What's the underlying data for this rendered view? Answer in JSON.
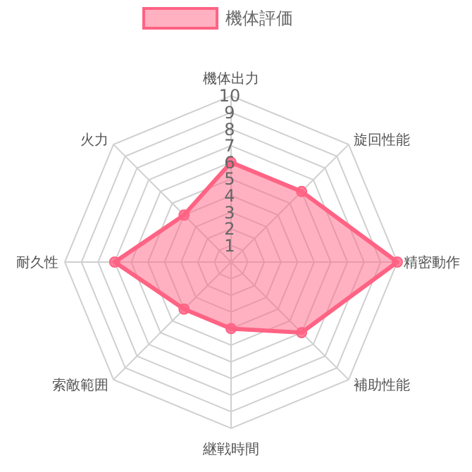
{
  "chart_data": {
    "type": "radar",
    "categories": [
      "機体出力",
      "旋回性能",
      "精密動作",
      "補助性能",
      "継戦時間",
      "索敵範囲",
      "耐久性",
      "火力"
    ],
    "series": [
      {
        "name": "機体評価",
        "color": "#ff6384",
        "values": [
          6,
          6,
          10,
          6,
          4,
          4,
          7,
          4
        ]
      }
    ],
    "ylim": [
      0,
      10
    ],
    "yticks": [
      1,
      2,
      3,
      4,
      5,
      6,
      7,
      8,
      9,
      10
    ],
    "grid": true,
    "legend": "top",
    "marker": "circle"
  }
}
